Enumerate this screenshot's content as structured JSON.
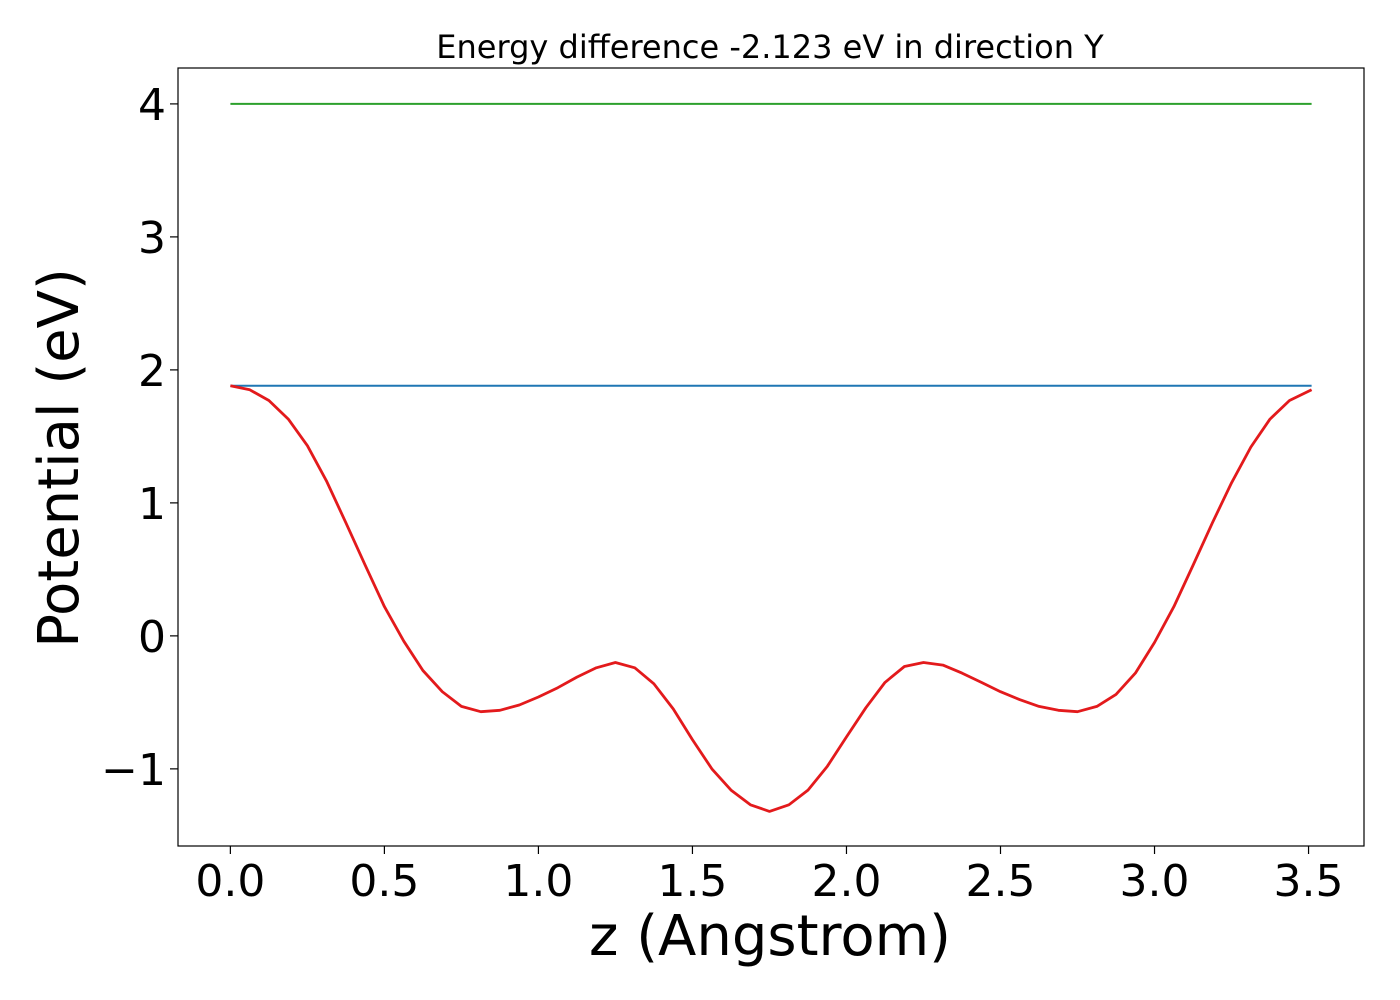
{
  "chart_data": {
    "type": "line",
    "title": "Energy difference -2.123 eV in direction Y",
    "xlabel": "z (Angstrom)",
    "ylabel": "Potential (eV)",
    "xlim": [
      -0.17,
      3.68
    ],
    "ylim": [
      -1.58,
      4.27
    ],
    "grid": false,
    "x_ticks": [
      0.0,
      0.5,
      1.0,
      1.5,
      2.0,
      2.5,
      3.0,
      3.5
    ],
    "x_tick_labels": [
      "0.0",
      "0.5",
      "1.0",
      "1.5",
      "2.0",
      "2.5",
      "3.0",
      "3.5"
    ],
    "y_ticks": [
      -1,
      0,
      1,
      2,
      3,
      4
    ],
    "y_tick_labels": [
      "−1",
      "0",
      "1",
      "2",
      "3",
      "4"
    ],
    "series": [
      {
        "color": "#2ca02c",
        "x": [
          0.0,
          3.51
        ],
        "y": [
          4.0,
          4.0
        ]
      },
      {
        "color": "#1f77b4",
        "x": [
          0.0,
          3.51
        ],
        "y": [
          1.88,
          1.88
        ]
      },
      {
        "color": "#e31a1c",
        "x": [
          0.0,
          0.063,
          0.125,
          0.188,
          0.25,
          0.313,
          0.375,
          0.438,
          0.5,
          0.563,
          0.625,
          0.688,
          0.75,
          0.813,
          0.875,
          0.938,
          1.0,
          1.063,
          1.125,
          1.188,
          1.25,
          1.313,
          1.375,
          1.438,
          1.5,
          1.563,
          1.625,
          1.688,
          1.75,
          1.813,
          1.875,
          1.938,
          2.0,
          2.063,
          2.125,
          2.188,
          2.25,
          2.313,
          2.375,
          2.438,
          2.5,
          2.563,
          2.625,
          2.688,
          2.75,
          2.813,
          2.875,
          2.938,
          3.0,
          3.063,
          3.125,
          3.188,
          3.25,
          3.313,
          3.375,
          3.438,
          3.51
        ],
        "y": [
          1.88,
          1.85,
          1.77,
          1.63,
          1.43,
          1.16,
          0.85,
          0.53,
          0.22,
          -0.04,
          -0.26,
          -0.42,
          -0.53,
          -0.57,
          -0.56,
          -0.52,
          -0.46,
          -0.39,
          -0.31,
          -0.24,
          -0.2,
          -0.24,
          -0.36,
          -0.55,
          -0.78,
          -1.0,
          -1.16,
          -1.27,
          -1.32,
          -1.27,
          -1.16,
          -0.98,
          -0.76,
          -0.54,
          -0.35,
          -0.23,
          -0.2,
          -0.22,
          -0.28,
          -0.35,
          -0.42,
          -0.48,
          -0.53,
          -0.56,
          -0.57,
          -0.53,
          -0.44,
          -0.28,
          -0.05,
          0.22,
          0.53,
          0.85,
          1.15,
          1.42,
          1.63,
          1.77,
          1.85
        ]
      }
    ]
  }
}
